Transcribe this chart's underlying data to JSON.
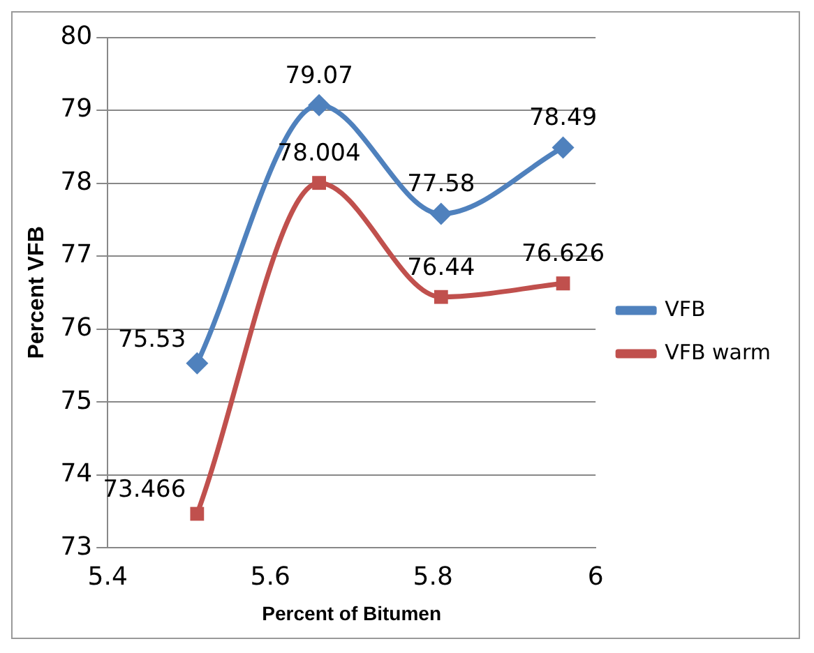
{
  "chart_data": {
    "type": "line",
    "xlabel": "Percent of Bitumen",
    "ylabel": "Percent VFB",
    "x": [
      5.51,
      5.66,
      5.81,
      5.96
    ],
    "series": [
      {
        "name": "VFB",
        "color": "#4f81bd",
        "values": [
          75.53,
          79.07,
          77.58,
          78.49
        ],
        "marker": "diamond"
      },
      {
        "name": "VFB warm",
        "color": "#c0504d",
        "values": [
          73.466,
          78.004,
          76.44,
          76.626
        ],
        "marker": "square"
      }
    ],
    "xlim": [
      5.4,
      6
    ],
    "xticks": [
      5.4,
      5.6,
      5.8,
      6
    ],
    "ylim": [
      73,
      80
    ],
    "yticks": [
      73,
      74,
      75,
      76,
      77,
      78,
      79,
      80
    ],
    "grid": "y",
    "legend": "right",
    "data_labels": true
  }
}
